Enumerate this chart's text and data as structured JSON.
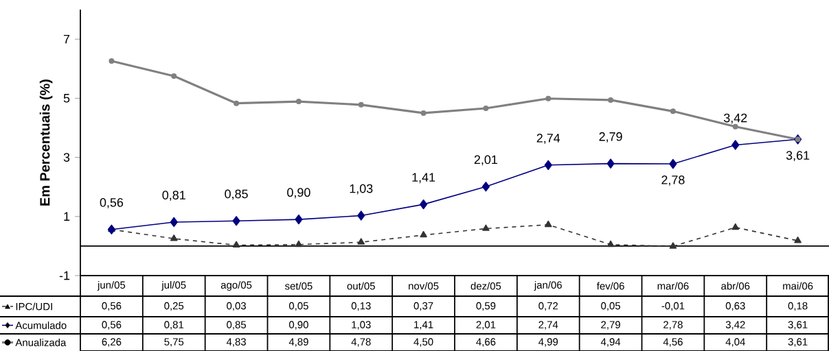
{
  "chart_data": {
    "type": "line",
    "ylabel": "Em  Percentuais (%)",
    "categories": [
      "jun/05",
      "jul/05",
      "ago/05",
      "set/05",
      "out/05",
      "nov/05",
      "dez/05",
      "jan/06",
      "fev/06",
      "mar/06",
      "abr/06",
      "mai/06"
    ],
    "ylim": [
      -1,
      8
    ],
    "yticks": [
      -1,
      1,
      3,
      5,
      7
    ],
    "grid": false,
    "legend": "bottom left",
    "ref_lines": [
      {
        "axis": "y",
        "value": 0,
        "color": "#000000"
      }
    ],
    "series": [
      {
        "name": "IPC/UDI",
        "color": "#333333",
        "marker": "triangle",
        "line_style": "dashed",
        "values": [
          0.56,
          0.25,
          0.03,
          0.05,
          0.13,
          0.37,
          0.59,
          0.72,
          0.05,
          -0.01,
          0.63,
          0.18
        ],
        "value_labels": [
          "0,56",
          "0,25",
          "0,03",
          "0,05",
          "0,13",
          "0,37",
          "0,59",
          "0,72",
          "0,05",
          "-0,01",
          "0,63",
          "0,18"
        ]
      },
      {
        "name": "Acumulado",
        "color": "#000080",
        "marker": "diamond",
        "line_style": "solid",
        "data_labels": true,
        "values": [
          0.56,
          0.81,
          0.85,
          0.9,
          1.03,
          1.41,
          2.01,
          2.74,
          2.79,
          2.78,
          3.42,
          3.61
        ],
        "value_labels": [
          "0,56",
          "0,81",
          "0,85",
          "0,90",
          "1,03",
          "1,41",
          "2,01",
          "2,74",
          "2,79",
          "2,78",
          "3,42",
          "3,61"
        ]
      },
      {
        "name": "Anualizada",
        "color": "#808080",
        "marker": "circle",
        "line_style": "solid",
        "values": [
          6.26,
          5.75,
          4.83,
          4.89,
          4.78,
          4.5,
          4.66,
          4.99,
          4.94,
          4.56,
          4.04,
          3.61
        ],
        "value_labels": [
          "6,26",
          "5,75",
          "4,83",
          "4,89",
          "4,78",
          "4,50",
          "4,66",
          "4,99",
          "4,94",
          "4,56",
          "4,04",
          "3,61"
        ]
      }
    ]
  }
}
